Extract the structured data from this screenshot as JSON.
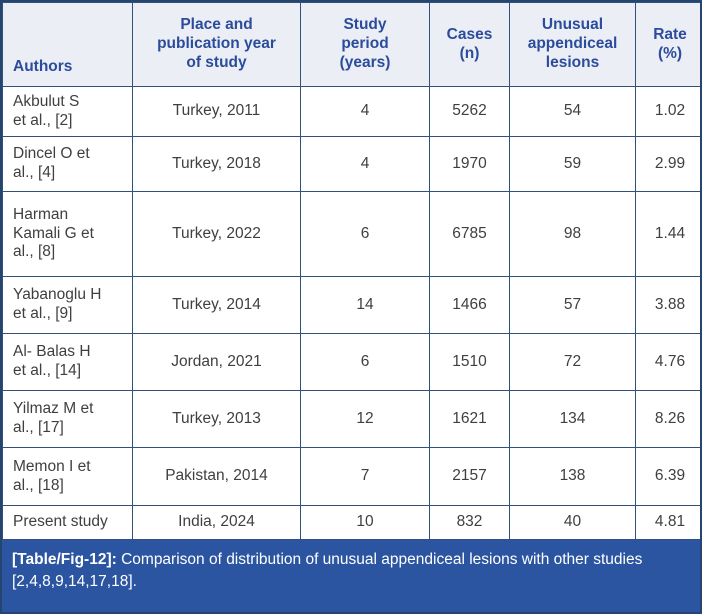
{
  "colors": {
    "border-color": "#31517c",
    "outer-border-color": "#26456e",
    "header-bg": "#eceef6",
    "header-text": "#2b4c9b",
    "body-text": "#3f3f3f",
    "caption-bg": "#2b55a1",
    "caption-text": "#ffffff"
  },
  "table": {
    "headers": [
      "Authors",
      "Place and\npublication year\nof study",
      "Study\nperiod\n(years)",
      "Cases\n(n)",
      "Unusual\nappendiceal\nlesions",
      "Rate\n(%)"
    ],
    "rows": [
      {
        "authors": "Akbulut S\net al., [2]",
        "place": "Turkey, 2011",
        "period": "4",
        "cases": "5262",
        "lesions": "54",
        "rate": "1.02"
      },
      {
        "authors": "Dincel O et\nal., [4]",
        "place": "Turkey, 2018",
        "period": "4",
        "cases": "1970",
        "lesions": "59",
        "rate": "2.99"
      },
      {
        "authors": "Harman\nKamali G et\nal., [8]",
        "place": "Turkey, 2022",
        "period": "6",
        "cases": "6785",
        "lesions": "98",
        "rate": "1.44"
      },
      {
        "authors": "Yabanoglu H\net al., [9]",
        "place": "Turkey, 2014",
        "period": "14",
        "cases": "1466",
        "lesions": "57",
        "rate": "3.88"
      },
      {
        "authors": "Al- Balas H\net al., [14]",
        "place": "Jordan, 2021",
        "period": "6",
        "cases": "1510",
        "lesions": "72",
        "rate": "4.76"
      },
      {
        "authors": "Yilmaz M et\nal., [17]",
        "place": "Turkey, 2013",
        "period": "12",
        "cases": "1621",
        "lesions": "134",
        "rate": "8.26"
      },
      {
        "authors": "Memon I et\nal., [18]",
        "place": "Pakistan, 2014",
        "period": "7",
        "cases": "2157",
        "lesions": "138",
        "rate": "6.39"
      },
      {
        "authors": "Present study",
        "place": "India, 2024",
        "period": "10",
        "cases": "832",
        "lesions": "40",
        "rate": "4.81"
      }
    ]
  },
  "caption": {
    "label": "[Table/Fig-12]:",
    "text": " Comparison of distribution of unusual appendiceal lesions with other studies [2,4,8,9,14,17,18]."
  }
}
